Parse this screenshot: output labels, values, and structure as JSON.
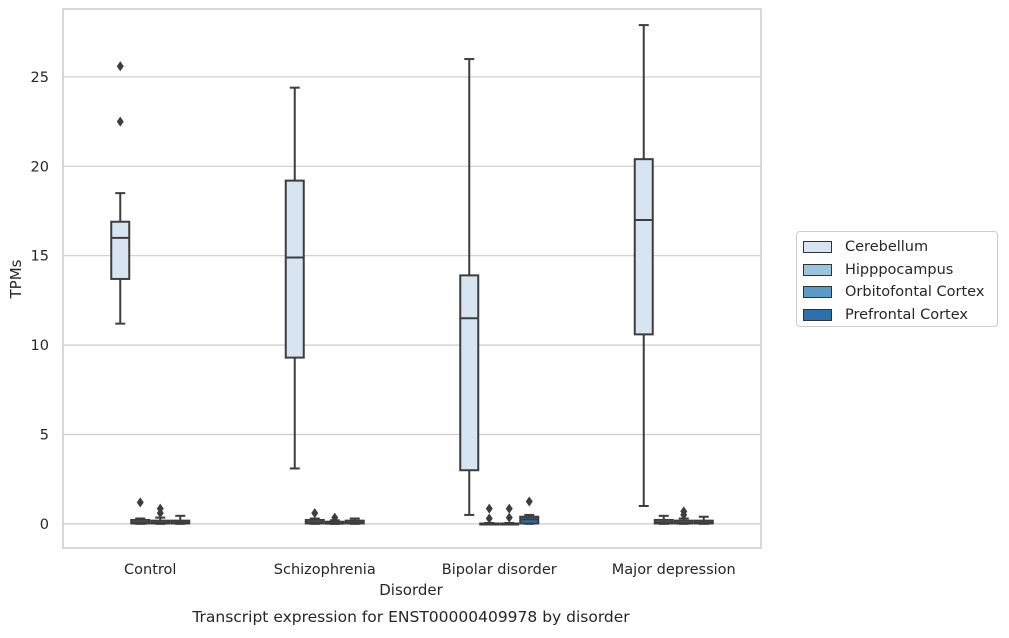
{
  "chart_data": {
    "type": "boxplot",
    "title": "Transcript expression for ENST00000409978 by disorder",
    "xlabel": "Disorder",
    "ylabel": "TPMs",
    "ylim": [
      -1.35,
      28.8
    ],
    "yticks": [
      0,
      5,
      10,
      15,
      20,
      25
    ],
    "grid": true,
    "legend_position": "right",
    "categories": [
      "Control",
      "Schizophrenia",
      "Bipolar disorder",
      "Major depression"
    ],
    "series": [
      {
        "name": "Cerebellum",
        "color": "#d7e5f3",
        "boxes": [
          {
            "whisker_low": 11.2,
            "q1": 13.7,
            "median": 16.0,
            "q3": 16.9,
            "whisker_high": 18.5,
            "outliers": [
              22.5,
              25.6
            ]
          },
          {
            "whisker_low": 3.1,
            "q1": 9.3,
            "median": 14.9,
            "q3": 19.2,
            "whisker_high": 24.4,
            "outliers": []
          },
          {
            "whisker_low": 0.5,
            "q1": 3.0,
            "median": 11.5,
            "q3": 13.9,
            "whisker_high": 26.0,
            "outliers": []
          },
          {
            "whisker_low": 1.0,
            "q1": 10.6,
            "median": 17.0,
            "q3": 20.4,
            "whisker_high": 27.9,
            "outliers": []
          }
        ]
      },
      {
        "name": "Hipppocampus",
        "color": "#9dc4dd",
        "boxes": [
          {
            "whisker_low": 0.0,
            "q1": 0.02,
            "median": 0.1,
            "q3": 0.22,
            "whisker_high": 0.3,
            "outliers": [
              1.2
            ]
          },
          {
            "whisker_low": 0.0,
            "q1": 0.02,
            "median": 0.1,
            "q3": 0.22,
            "whisker_high": 0.3,
            "outliers": [
              0.6
            ]
          },
          {
            "whisker_low": 0.0,
            "q1": 0.0,
            "median": 0.0,
            "q3": 0.02,
            "whisker_high": 0.05,
            "outliers": [
              0.3,
              0.85
            ]
          },
          {
            "whisker_low": 0.0,
            "q1": 0.02,
            "median": 0.1,
            "q3": 0.22,
            "whisker_high": 0.45,
            "outliers": []
          }
        ]
      },
      {
        "name": "Orbitofontal Cortex",
        "color": "#5a9bc8",
        "boxes": [
          {
            "whisker_low": 0.0,
            "q1": 0.02,
            "median": 0.06,
            "q3": 0.18,
            "whisker_high": 0.35,
            "outliers": [
              0.6,
              0.85
            ]
          },
          {
            "whisker_low": 0.0,
            "q1": 0.01,
            "median": 0.05,
            "q3": 0.12,
            "whisker_high": 0.2,
            "outliers": [
              0.35
            ]
          },
          {
            "whisker_low": 0.0,
            "q1": 0.0,
            "median": 0.0,
            "q3": 0.02,
            "whisker_high": 0.05,
            "outliers": [
              0.35,
              0.85
            ]
          },
          {
            "whisker_low": 0.0,
            "q1": 0.02,
            "median": 0.06,
            "q3": 0.18,
            "whisker_high": 0.3,
            "outliers": [
              0.5,
              0.7
            ]
          }
        ]
      },
      {
        "name": "Prefrontal Cortex",
        "color": "#2e6fad",
        "boxes": [
          {
            "whisker_low": 0.0,
            "q1": 0.02,
            "median": 0.06,
            "q3": 0.18,
            "whisker_high": 0.45,
            "outliers": []
          },
          {
            "whisker_low": 0.0,
            "q1": 0.02,
            "median": 0.06,
            "q3": 0.18,
            "whisker_high": 0.3,
            "outliers": []
          },
          {
            "whisker_low": 0.0,
            "q1": 0.02,
            "median": 0.25,
            "q3": 0.4,
            "whisker_high": 0.5,
            "outliers": [
              1.25
            ]
          },
          {
            "whisker_low": 0.0,
            "q1": 0.02,
            "median": 0.06,
            "q3": 0.18,
            "whisker_high": 0.4,
            "outliers": []
          }
        ]
      }
    ]
  }
}
